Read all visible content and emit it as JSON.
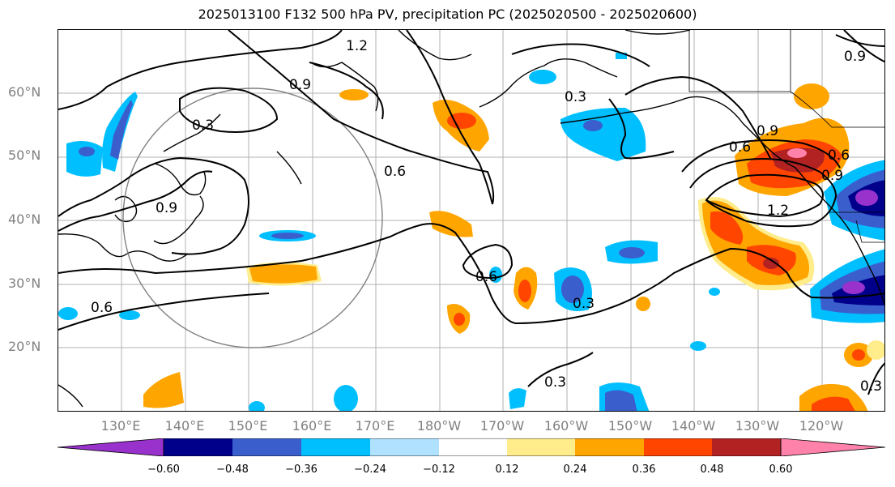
{
  "title": "2025013100 F132 500 hPa PV, precipitation PC (2025020500 - 2025020600)",
  "lat_labels": [
    "60°N",
    "50°N",
    "40°N",
    "30°N",
    "20°N"
  ],
  "lon_labels": [
    "130°E",
    "140°E",
    "150°E",
    "160°E",
    "170°E",
    "180°W",
    "170°W",
    "160°W",
    "150°W",
    "140°W",
    "130°W",
    "120°W"
  ],
  "colorbar": {
    "colors": [
      "#9932cc",
      "#00008b",
      "#3a5fcd",
      "#00bfff",
      "#b0e2ff",
      "#ffffff",
      "#ffec8b",
      "#ffa500",
      "#ff4500",
      "#b22222",
      "#ff82ab"
    ],
    "tick_labels": [
      "−0.60",
      "−0.48",
      "−0.36",
      "−0.24",
      "−0.12",
      "0.12",
      "0.24",
      "0.36",
      "0.48",
      "0.60"
    ]
  },
  "contour_labels": [
    "1.2",
    "0.9",
    "0.3",
    "0.9",
    "0.6",
    "0.3",
    "0.9",
    "0.6",
    "0.6",
    "0.3",
    "0.3",
    "0.6",
    "1.2",
    "0.9",
    "0.9",
    "0.3",
    "0.6"
  ]
}
